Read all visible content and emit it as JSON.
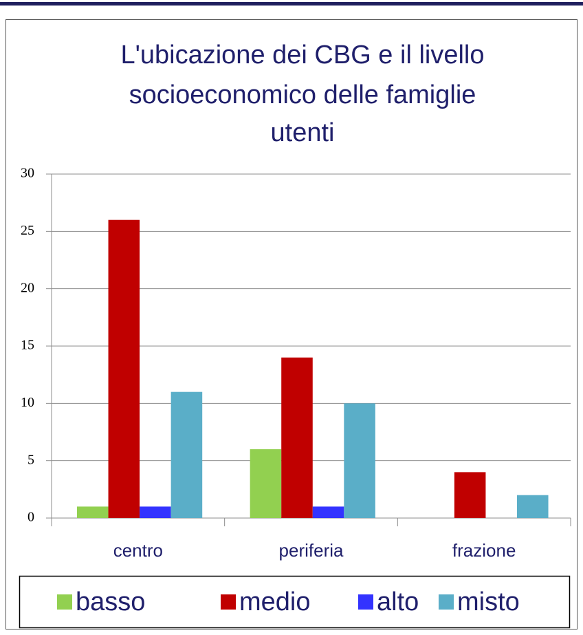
{
  "chart_data": {
    "type": "bar",
    "title": [
      "L'ubicazione dei CBG e il livello",
      "socioeconomico delle famiglie",
      "utenti"
    ],
    "categories": [
      "centro",
      "periferia",
      "frazione"
    ],
    "series": [
      {
        "name": "basso",
        "color": "#92d050",
        "values": [
          1,
          6,
          0
        ]
      },
      {
        "name": "medio",
        "color": "#c00000",
        "values": [
          26,
          14,
          4
        ]
      },
      {
        "name": "alto",
        "color": "#3333ff",
        "values": [
          1,
          1,
          0
        ]
      },
      {
        "name": "misto",
        "color": "#5aaec8",
        "values": [
          11,
          10,
          2
        ]
      }
    ],
    "ylim": [
      0,
      30
    ],
    "yticks": [
      0,
      5,
      10,
      15,
      20,
      25,
      30
    ],
    "grid": true,
    "legend": "bottom"
  }
}
